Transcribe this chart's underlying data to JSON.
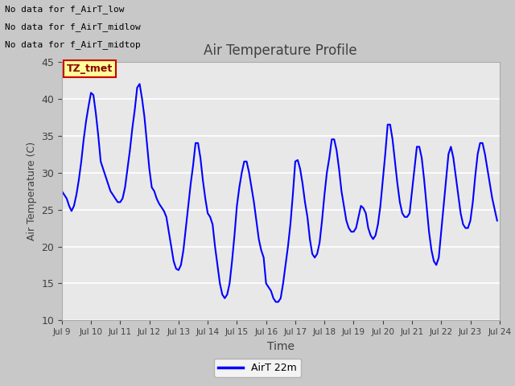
{
  "title": "Air Temperature Profile",
  "xlabel": "Time",
  "ylabel": "Air Temperature (C)",
  "ylim": [
    10,
    45
  ],
  "xlim_days": [
    9,
    24
  ],
  "x_tick_labels": [
    "Jul 9",
    "Jul 10",
    "Jul 11",
    "Jul 12",
    "Jul 13",
    "Jul 14",
    "Jul 15",
    "Jul 16",
    "Jul 17",
    "Jul 18",
    "Jul 19",
    "Jul 20",
    "Jul 21",
    "Jul 22",
    "Jul 23",
    "Jul 24"
  ],
  "line_color": "blue",
  "line_width": 1.5,
  "legend_label": "AirT 22m",
  "no_data_texts": [
    "No data for f_AirT_low",
    "No data for f_AirT_midlow",
    "No data for f_AirT_midtop"
  ],
  "tz_tmet_label": "TZ_tmet",
  "fig_bg_color": "#c8c8c8",
  "plot_bg_color": "#e8e8e8",
  "y_ticks": [
    10,
    15,
    20,
    25,
    30,
    35,
    40,
    45
  ],
  "data_x": [
    9.0,
    9.083,
    9.167,
    9.25,
    9.333,
    9.417,
    9.5,
    9.583,
    9.667,
    9.75,
    9.833,
    9.917,
    10.0,
    10.083,
    10.167,
    10.25,
    10.333,
    10.417,
    10.5,
    10.583,
    10.667,
    10.75,
    10.833,
    10.917,
    11.0,
    11.083,
    11.167,
    11.25,
    11.333,
    11.417,
    11.5,
    11.583,
    11.667,
    11.75,
    11.833,
    11.917,
    12.0,
    12.083,
    12.167,
    12.25,
    12.333,
    12.417,
    12.5,
    12.583,
    12.667,
    12.75,
    12.833,
    12.917,
    13.0,
    13.083,
    13.167,
    13.25,
    13.333,
    13.417,
    13.5,
    13.583,
    13.667,
    13.75,
    13.833,
    13.917,
    14.0,
    14.083,
    14.167,
    14.25,
    14.333,
    14.417,
    14.5,
    14.583,
    14.667,
    14.75,
    14.833,
    14.917,
    15.0,
    15.083,
    15.167,
    15.25,
    15.333,
    15.417,
    15.5,
    15.583,
    15.667,
    15.75,
    15.833,
    15.917,
    16.0,
    16.083,
    16.167,
    16.25,
    16.333,
    16.417,
    16.5,
    16.583,
    16.667,
    16.75,
    16.833,
    16.917,
    17.0,
    17.083,
    17.167,
    17.25,
    17.333,
    17.417,
    17.5,
    17.583,
    17.667,
    17.75,
    17.833,
    17.917,
    18.0,
    18.083,
    18.167,
    18.25,
    18.333,
    18.417,
    18.5,
    18.583,
    18.667,
    18.75,
    18.833,
    18.917,
    19.0,
    19.083,
    19.167,
    19.25,
    19.333,
    19.417,
    19.5,
    19.583,
    19.667,
    19.75,
    19.833,
    19.917,
    20.0,
    20.083,
    20.167,
    20.25,
    20.333,
    20.417,
    20.5,
    20.583,
    20.667,
    20.75,
    20.833,
    20.917,
    21.0,
    21.083,
    21.167,
    21.25,
    21.333,
    21.417,
    21.5,
    21.583,
    21.667,
    21.75,
    21.833,
    21.917,
    22.0,
    22.083,
    22.167,
    22.25,
    22.333,
    22.417,
    22.5,
    22.583,
    22.667,
    22.75,
    22.833,
    22.917,
    23.0,
    23.083,
    23.167,
    23.25,
    23.333,
    23.417,
    23.5,
    23.583,
    23.667,
    23.75,
    23.833,
    23.917
  ],
  "data_y": [
    27.5,
    27.0,
    26.5,
    25.5,
    24.8,
    25.5,
    27.0,
    29.0,
    31.5,
    34.5,
    37.0,
    39.0,
    40.8,
    40.5,
    38.0,
    35.0,
    31.5,
    30.5,
    29.5,
    28.5,
    27.5,
    27.0,
    26.5,
    26.0,
    26.0,
    26.5,
    28.0,
    30.5,
    33.0,
    36.0,
    38.5,
    41.5,
    42.0,
    40.0,
    37.5,
    34.0,
    30.5,
    28.0,
    27.5,
    26.5,
    25.8,
    25.3,
    24.8,
    24.0,
    22.0,
    20.0,
    18.0,
    17.0,
    16.8,
    17.5,
    19.5,
    22.5,
    25.5,
    28.5,
    31.0,
    34.0,
    34.0,
    32.0,
    29.0,
    26.5,
    24.5,
    24.0,
    23.0,
    20.0,
    17.5,
    15.0,
    13.5,
    13.0,
    13.5,
    15.0,
    18.0,
    21.5,
    25.5,
    28.0,
    30.0,
    31.5,
    31.5,
    30.0,
    28.0,
    26.0,
    23.5,
    21.0,
    19.5,
    18.5,
    15.0,
    14.5,
    14.0,
    13.0,
    12.5,
    12.5,
    13.0,
    15.0,
    17.5,
    20.0,
    23.0,
    27.0,
    31.5,
    31.7,
    30.5,
    28.5,
    26.0,
    24.0,
    21.0,
    19.0,
    18.5,
    19.0,
    20.5,
    23.5,
    27.0,
    30.0,
    32.0,
    34.5,
    34.5,
    33.0,
    30.5,
    27.5,
    25.5,
    23.5,
    22.5,
    22.0,
    22.0,
    22.5,
    24.0,
    25.5,
    25.2,
    24.5,
    22.5,
    21.5,
    21.0,
    21.5,
    23.0,
    25.5,
    29.0,
    32.5,
    36.5,
    36.5,
    34.5,
    31.5,
    28.5,
    26.0,
    24.5,
    24.0,
    24.0,
    24.5,
    27.5,
    30.5,
    33.5,
    33.5,
    32.0,
    29.0,
    25.5,
    22.0,
    19.5,
    18.0,
    17.5,
    18.5,
    22.0,
    25.5,
    29.0,
    32.5,
    33.5,
    32.0,
    29.5,
    27.0,
    24.5,
    23.0,
    22.5,
    22.5,
    23.5,
    26.0,
    29.5,
    32.5,
    34.0,
    34.0,
    32.5,
    30.5,
    28.5,
    26.5,
    25.0,
    23.5
  ]
}
